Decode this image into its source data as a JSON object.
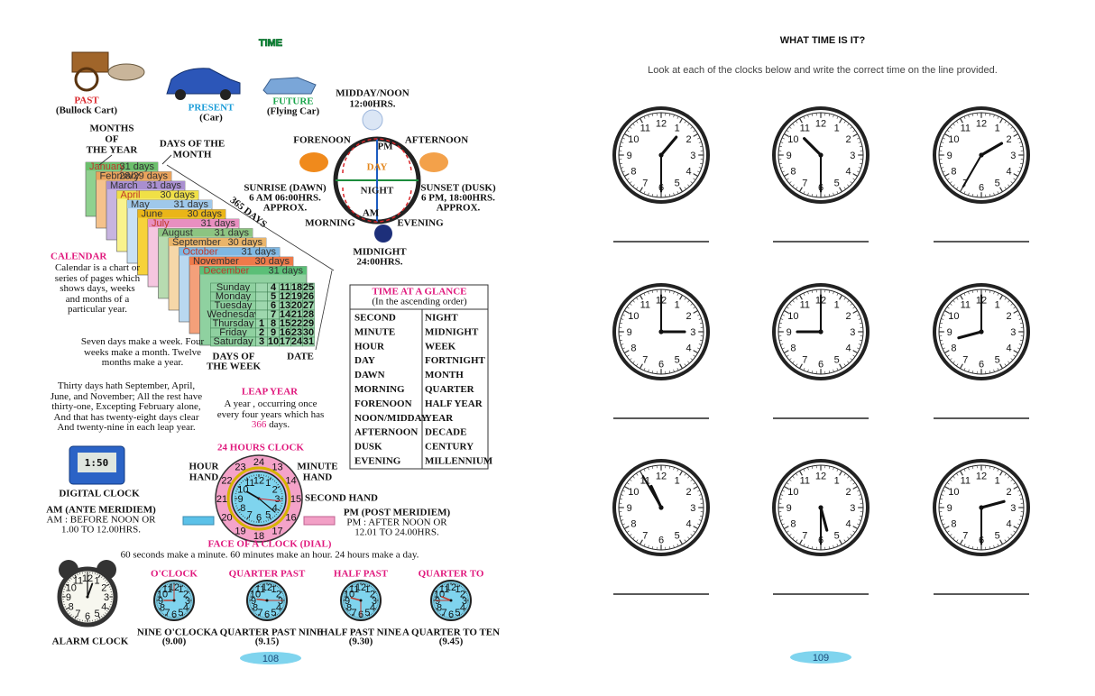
{
  "left_page": {
    "title": "TIME",
    "transport": [
      {
        "label": "PAST",
        "sub": "(Bullock Cart)"
      },
      {
        "label": "PRESENT",
        "sub": "(Car)"
      },
      {
        "label": "FUTURE",
        "sub": "(Flying Car)"
      }
    ],
    "day_night": {
      "noon": "MIDDAY/NOON",
      "noon_time": "12:00HRS.",
      "forenoon": "FORENOON",
      "afternoon": "AFTERNOON",
      "day": "DAY",
      "night": "NIGHT",
      "am": "AM",
      "pm": "PM",
      "sunrise": [
        "SUNRISE (DAWN)",
        "6 AM 06:00HRS.",
        "APPROX."
      ],
      "sunset": [
        "SUNSET (DUSK)",
        "6 PM, 18:00HRS.",
        "APPROX."
      ],
      "morning": "MORNING",
      "evening": "EVENING",
      "midnight": "MIDNIGHT",
      "midnight_time": "24:00HRS."
    },
    "calendar": {
      "months_label": [
        "MONTHS",
        "OF",
        "THE YEAR"
      ],
      "days_of_month": [
        "DAYS OF THE",
        "MONTH"
      ],
      "year_days": "365 DAYS",
      "months": [
        {
          "name": "January",
          "days": "31 days"
        },
        {
          "name": "February",
          "days": "28/29 days"
        },
        {
          "name": "March",
          "days": "31 days"
        },
        {
          "name": "April",
          "days": "30 days"
        },
        {
          "name": "May",
          "days": "31 days"
        },
        {
          "name": "June",
          "days": "30 days"
        },
        {
          "name": "July",
          "days": "31 days"
        },
        {
          "name": "August",
          "days": "31 days"
        },
        {
          "name": "September",
          "days": "30 days"
        },
        {
          "name": "October",
          "days": "31 days"
        },
        {
          "name": "November",
          "days": "30 days"
        },
        {
          "name": "December",
          "days": "31 days"
        }
      ],
      "weekdays": [
        "Sunday",
        "Monday",
        "Tuesday",
        "Wednesday",
        "Thursday",
        "Friday",
        "Saturday"
      ],
      "dates": [
        [
          4,
          11,
          18,
          25
        ],
        [
          5,
          12,
          19,
          26
        ],
        [
          6,
          13,
          20,
          27
        ],
        [
          7,
          14,
          21,
          28
        ],
        [
          1,
          8,
          15,
          22,
          29
        ],
        [
          2,
          9,
          16,
          23,
          30
        ],
        [
          3,
          10,
          17,
          24,
          31
        ]
      ],
      "days_of_week": [
        "DAYS OF",
        "THE WEEK"
      ],
      "date": "DATE",
      "heading": "CALENDAR",
      "definition": "Calendar is a chart or series of pages which shows days, weeks and months of a particular year.",
      "weeks_text": "Seven days make a week. Four weeks make a month. Twelve months make a year.",
      "rhyme": "Thirty days hath September, April, June, and November; All the rest have thirty-one, Excepting February alone, And that has twenty-eight days clear And twenty-nine in each leap year."
    },
    "leap_year": {
      "heading": "LEAP YEAR",
      "text_before": "A year , occurring once every four years which has",
      "days": "366",
      "text_after": "days."
    },
    "glance": {
      "heading": "TIME AT A GLANCE",
      "sub": "(In the ascending order)",
      "rows": [
        [
          "SECOND",
          "NIGHT"
        ],
        [
          "MINUTE",
          "MIDNIGHT"
        ],
        [
          "HOUR",
          "WEEK"
        ],
        [
          "DAY",
          "FORTNIGHT"
        ],
        [
          "DAWN",
          "MONTH"
        ],
        [
          "MORNING",
          "QUARTER"
        ],
        [
          "FORENOON",
          "HALF YEAR"
        ],
        [
          "NOON/MIDDAY",
          "YEAR"
        ],
        [
          "AFTERNOON",
          "DECADE"
        ],
        [
          "DUSK",
          "CENTURY"
        ],
        [
          "EVENING",
          "MILLENNIUM"
        ]
      ]
    },
    "digital_clock": {
      "display": "1:50",
      "label": "DIGITAL CLOCK"
    },
    "am": [
      "AM (ANTE MERIDIEM)",
      "AM : BEFORE NOON OR",
      "1.00 TO 12.00HRS."
    ],
    "pm": [
      "PM (POST MERIDIEM)",
      "PM : AFTER NOON OR",
      "12.01 TO 24.00HRS."
    ],
    "clock_24": {
      "heading": "24 HOURS CLOCK",
      "hour_hand": [
        "HOUR",
        "HAND"
      ],
      "minute_hand": [
        "MINUTE",
        "HAND"
      ],
      "second_hand": "SECOND HAND",
      "outer_numbers": [
        24,
        13,
        14,
        15,
        16,
        17,
        18,
        19,
        20,
        21,
        22,
        23
      ],
      "face": "FACE OF A CLOCK (DIAL)",
      "sentence": "60 seconds make a minute. 60 minutes make an hour. 24 hours make a day."
    },
    "alarm_clock": "ALARM CLOCK",
    "examples": [
      {
        "title": "O'CLOCK",
        "label": "NINE O'CLOCK",
        "time": "(9.00)"
      },
      {
        "title": "QUARTER PAST",
        "label": "A QUARTER PAST NINE",
        "time": "(9.15)"
      },
      {
        "title": "HALF PAST",
        "label": "HALF PAST NINE",
        "time": "(9.30)"
      },
      {
        "title": "QUARTER TO",
        "label": "A QUARTER TO TEN",
        "time": "(9.45)"
      }
    ],
    "page_number": "108"
  },
  "right_page": {
    "title": "WHAT TIME IS IT?",
    "instruction": "Look at each of the clocks below and write the correct time on the line provided.",
    "page_number": "109"
  },
  "dial_numbers": [
    12,
    1,
    2,
    3,
    4,
    5,
    6,
    7,
    8,
    9,
    10,
    11
  ]
}
